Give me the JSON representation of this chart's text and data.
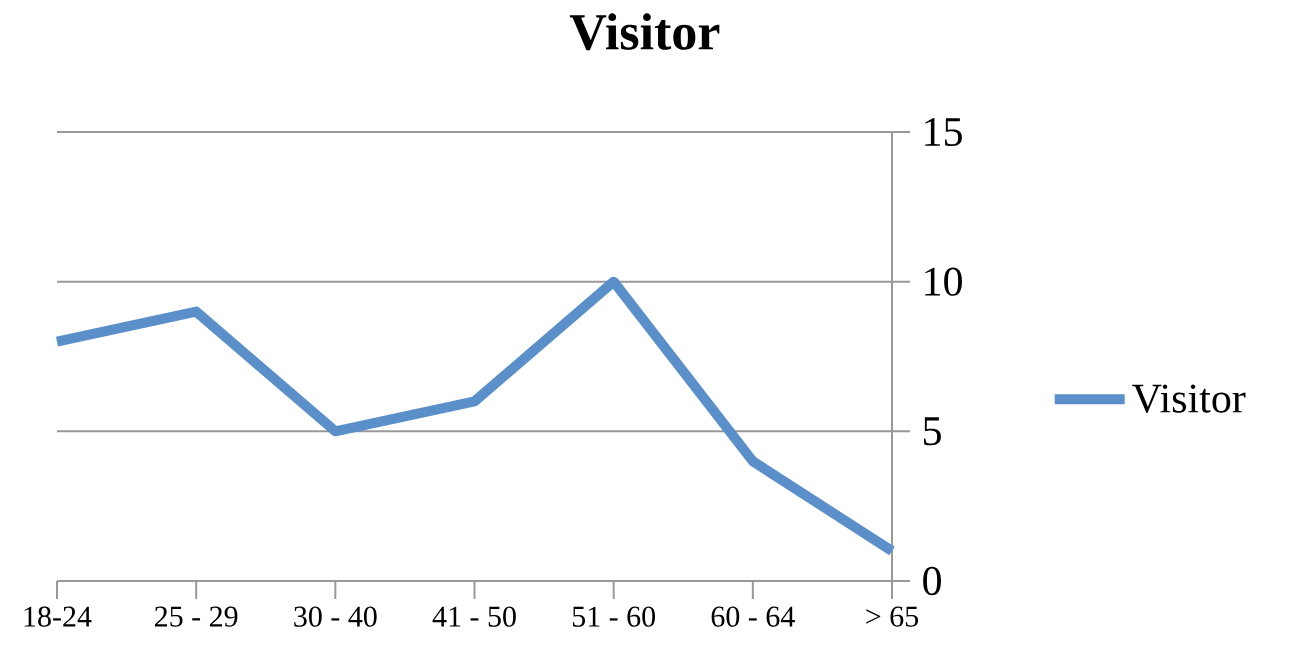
{
  "chart_data": {
    "type": "line",
    "title": "Visitor",
    "categories": [
      "18-24",
      "25 - 29",
      "30 - 40",
      "41 - 50",
      "51 - 60",
      "60 - 64",
      "> 65"
    ],
    "series": [
      {
        "name": "Visitor",
        "color": "#5b8fc9",
        "values": [
          8,
          9,
          5,
          6,
          10,
          4,
          1
        ]
      }
    ],
    "ylim": [
      0,
      15
    ],
    "yticks": [
      0,
      5,
      10,
      15
    ],
    "grid": "y",
    "legend": "right",
    "marker": "none"
  }
}
